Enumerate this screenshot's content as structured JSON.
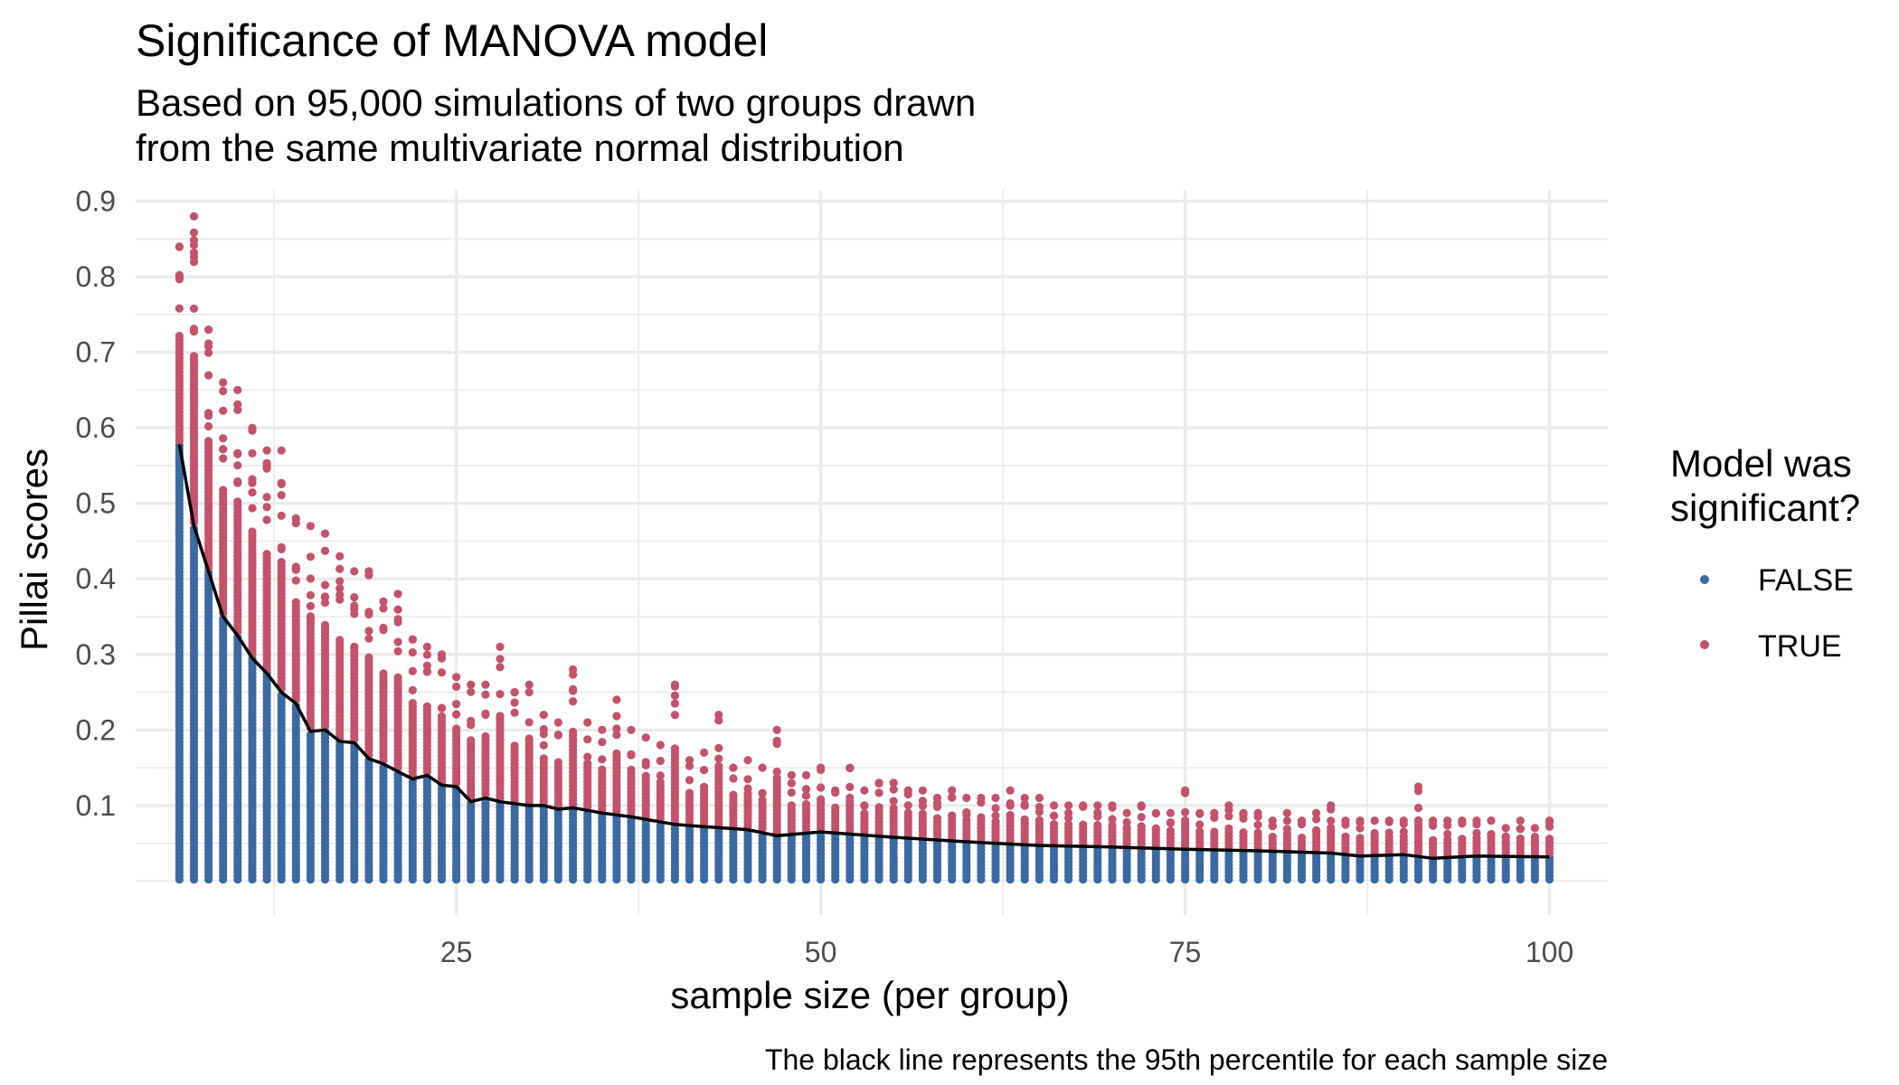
{
  "chart_data": {
    "type": "scatter",
    "title": "Significance of MANOVA model",
    "subtitle": [
      "Based on 95,000 simulations of two groups drawn",
      "from the same multivariate normal distribution"
    ],
    "xlabel": "sample size (per group)",
    "ylabel": "Pillai scores",
    "caption": "The black line represents the 95th percentile for each sample size",
    "x_range": [
      3,
      104
    ],
    "y_range": [
      -0.045,
      0.915
    ],
    "x_ticks": [
      25,
      50,
      75,
      100
    ],
    "y_ticks": [
      0.1,
      0.2,
      0.3,
      0.4,
      0.5,
      0.6,
      0.7,
      0.8,
      0.9
    ],
    "sample_size_range": [
      6,
      100
    ],
    "grid": true,
    "legend": {
      "title": [
        "Model was",
        "significant?"
      ],
      "position": "right",
      "items": [
        {
          "label": "FALSE",
          "color": "#3b6aa3"
        },
        {
          "label": "TRUE",
          "color": "#c4526b"
        }
      ]
    },
    "series": [
      {
        "name": "FALSE",
        "color": "#3b6aa3"
      },
      {
        "name": "TRUE",
        "color": "#c4526b"
      }
    ],
    "line": {
      "color": "#000000",
      "points": [
        [
          6,
          0.578
        ],
        [
          7,
          0.47
        ],
        [
          8,
          0.41
        ],
        [
          9,
          0.35
        ],
        [
          10,
          0.325
        ],
        [
          11,
          0.295
        ],
        [
          12,
          0.275
        ],
        [
          13,
          0.25
        ],
        [
          14,
          0.235
        ],
        [
          15,
          0.198
        ],
        [
          16,
          0.2
        ],
        [
          17,
          0.185
        ],
        [
          18,
          0.183
        ],
        [
          19,
          0.162
        ],
        [
          20,
          0.155
        ],
        [
          21,
          0.145
        ],
        [
          22,
          0.135
        ],
        [
          23,
          0.14
        ],
        [
          24,
          0.127
        ],
        [
          25,
          0.125
        ],
        [
          26,
          0.105
        ],
        [
          27,
          0.11
        ],
        [
          28,
          0.105
        ],
        [
          30,
          0.1
        ],
        [
          31,
          0.1
        ],
        [
          32,
          0.095
        ],
        [
          33,
          0.097
        ],
        [
          35,
          0.09
        ],
        [
          37,
          0.085
        ],
        [
          40,
          0.075
        ],
        [
          42,
          0.072
        ],
        [
          45,
          0.068
        ],
        [
          47,
          0.06
        ],
        [
          50,
          0.065
        ],
        [
          55,
          0.058
        ],
        [
          60,
          0.052
        ],
        [
          65,
          0.047
        ],
        [
          70,
          0.045
        ],
        [
          75,
          0.042
        ],
        [
          80,
          0.04
        ],
        [
          85,
          0.037
        ],
        [
          87,
          0.033
        ],
        [
          90,
          0.035
        ],
        [
          92,
          0.03
        ],
        [
          95,
          0.033
        ],
        [
          100,
          0.032
        ]
      ]
    },
    "max_values": [
      [
        6,
        0.84
      ],
      [
        7,
        0.88
      ],
      [
        8,
        0.73
      ],
      [
        9,
        0.66
      ],
      [
        10,
        0.65
      ],
      [
        11,
        0.6
      ],
      [
        12,
        0.57
      ],
      [
        13,
        0.57
      ],
      [
        14,
        0.48
      ],
      [
        15,
        0.47
      ],
      [
        16,
        0.46
      ],
      [
        17,
        0.43
      ],
      [
        18,
        0.41
      ],
      [
        19,
        0.41
      ],
      [
        20,
        0.37
      ],
      [
        21,
        0.38
      ],
      [
        22,
        0.32
      ],
      [
        23,
        0.31
      ],
      [
        24,
        0.3
      ],
      [
        25,
        0.27
      ],
      [
        26,
        0.26
      ],
      [
        27,
        0.26
      ],
      [
        28,
        0.31
      ],
      [
        29,
        0.25
      ],
      [
        30,
        0.26
      ],
      [
        31,
        0.22
      ],
      [
        32,
        0.21
      ],
      [
        33,
        0.28
      ],
      [
        34,
        0.21
      ],
      [
        35,
        0.2
      ],
      [
        36,
        0.24
      ],
      [
        37,
        0.2
      ],
      [
        38,
        0.19
      ],
      [
        39,
        0.18
      ],
      [
        40,
        0.26
      ],
      [
        41,
        0.16
      ],
      [
        42,
        0.17
      ],
      [
        43,
        0.22
      ],
      [
        44,
        0.15
      ],
      [
        45,
        0.16
      ],
      [
        46,
        0.15
      ],
      [
        47,
        0.2
      ],
      [
        48,
        0.14
      ],
      [
        49,
        0.14
      ],
      [
        50,
        0.15
      ],
      [
        51,
        0.12
      ],
      [
        52,
        0.15
      ],
      [
        53,
        0.12
      ],
      [
        54,
        0.13
      ],
      [
        55,
        0.13
      ],
      [
        56,
        0.12
      ],
      [
        57,
        0.12
      ],
      [
        58,
        0.11
      ],
      [
        59,
        0.12
      ],
      [
        60,
        0.11
      ],
      [
        61,
        0.11
      ],
      [
        62,
        0.11
      ],
      [
        63,
        0.12
      ],
      [
        64,
        0.11
      ],
      [
        65,
        0.11
      ],
      [
        66,
        0.1
      ],
      [
        67,
        0.1
      ],
      [
        68,
        0.1
      ],
      [
        69,
        0.1
      ],
      [
        70,
        0.1
      ],
      [
        71,
        0.09
      ],
      [
        72,
        0.1
      ],
      [
        73,
        0.09
      ],
      [
        74,
        0.09
      ],
      [
        75,
        0.12
      ],
      [
        76,
        0.09
      ],
      [
        77,
        0.09
      ],
      [
        78,
        0.1
      ],
      [
        79,
        0.09
      ],
      [
        80,
        0.09
      ],
      [
        81,
        0.08
      ],
      [
        82,
        0.09
      ],
      [
        83,
        0.08
      ],
      [
        84,
        0.09
      ],
      [
        85,
        0.1
      ],
      [
        86,
        0.08
      ],
      [
        87,
        0.08
      ],
      [
        88,
        0.08
      ],
      [
        89,
        0.08
      ],
      [
        90,
        0.08
      ],
      [
        91,
        0.125
      ],
      [
        92,
        0.08
      ],
      [
        93,
        0.08
      ],
      [
        94,
        0.08
      ],
      [
        95,
        0.08
      ],
      [
        96,
        0.08
      ],
      [
        97,
        0.07
      ],
      [
        98,
        0.08
      ],
      [
        99,
        0.07
      ],
      [
        100,
        0.08
      ]
    ]
  }
}
